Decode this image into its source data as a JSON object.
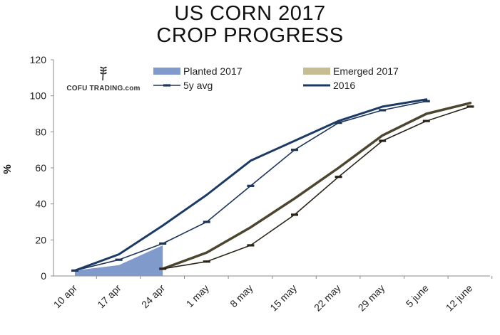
{
  "title": {
    "line1": "US CORN 2017",
    "line2": "CROP PROGRESS"
  },
  "logo": {
    "text": "COFU TRADING.com"
  },
  "colors": {
    "planted": "#7f9acb",
    "emerged": "#c6bd93",
    "emerged_line": "#4c4630",
    "avg5": "#1f3559",
    "y2016": "#1c3a64",
    "axis": "#8a8a8a"
  },
  "chart_data": {
    "type": "line",
    "title": "US CORN 2017 CROP PROGRESS",
    "xlabel": "",
    "ylabel": "%",
    "ylim": [
      0,
      120
    ],
    "yticks": [
      "0",
      "20",
      "40",
      "60",
      "80",
      "100",
      "120"
    ],
    "grid": false,
    "legend_position": "top",
    "categories": [
      "10 apr",
      "17 apr",
      "24 apr",
      "1 may",
      "8 may",
      "15 may",
      "22 may",
      "29 may",
      "5 june",
      "12 june"
    ],
    "series": [
      {
        "name": "Planted 2017",
        "kind": "area",
        "values": [
          3,
          6,
          17,
          null,
          null,
          null,
          null,
          null,
          null,
          null
        ]
      },
      {
        "name": "5y avg",
        "kind": "line-marker",
        "values": [
          3,
          9,
          18,
          30,
          50,
          70,
          85,
          92,
          97,
          null
        ]
      },
      {
        "name": "Emerged 2017",
        "kind": "line",
        "values": [
          null,
          null,
          4,
          13,
          27,
          43,
          60,
          78,
          90,
          96
        ]
      },
      {
        "name": "",
        "kind": "line-marker",
        "values": [
          null,
          null,
          4,
          8,
          17,
          34,
          55,
          75,
          86,
          94
        ]
      },
      {
        "name": "2016",
        "kind": "line",
        "values": [
          3,
          12,
          28,
          45,
          64,
          75,
          86,
          94,
          98,
          null
        ]
      }
    ]
  }
}
